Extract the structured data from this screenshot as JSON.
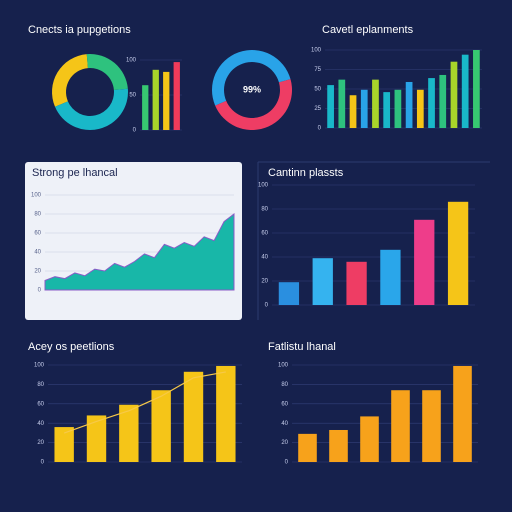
{
  "chart_data": [
    {
      "type": "pie",
      "title": "Cnects ia pupgetions",
      "values": [
        30,
        25,
        45
      ],
      "colors": [
        "#f5c518",
        "#2ec27e",
        "#19b8c9"
      ]
    },
    {
      "type": "bar",
      "values": [
        64,
        86,
        83,
        97
      ],
      "colors": [
        "#37c871",
        "#a8d42a",
        "#f5c518",
        "#ef3b5a"
      ],
      "ylim": [
        0,
        100
      ],
      "yticks": [
        0,
        50,
        100
      ]
    },
    {
      "type": "pie",
      "center_label": "99%",
      "values": [
        52,
        48
      ],
      "colors": [
        "#29a3e8",
        "#ee3d64"
      ]
    },
    {
      "type": "bar",
      "title": "Cavetl eplanments",
      "values": [
        55,
        62,
        42,
        49,
        62,
        46,
        49,
        59,
        49,
        64,
        68,
        85,
        94,
        100
      ],
      "colors": [
        "#19b8c9",
        "#2ec27e",
        "#f5c518",
        "#29a3e8",
        "#a8d42a",
        "#19b8c9",
        "#2ec27e",
        "#29a3e8",
        "#f5c518",
        "#19b8c9",
        "#2ec27e",
        "#a8d42a",
        "#19b8c9",
        "#37c871"
      ],
      "ylim": [
        0,
        100
      ],
      "yticks": [
        0,
        25,
        50,
        75,
        100
      ]
    },
    {
      "type": "area",
      "title": "Strong pe lhancal",
      "values": [
        10,
        14,
        12,
        18,
        15,
        22,
        20,
        28,
        24,
        30,
        38,
        34,
        48,
        44,
        50,
        46,
        56,
        52,
        72,
        80
      ],
      "color": "#18b7a8",
      "ylim": [
        0,
        100
      ],
      "yticks": [
        0,
        20,
        40,
        60,
        80,
        100
      ]
    },
    {
      "type": "bar",
      "title": "Cantinn plassts",
      "values": [
        19,
        39,
        36,
        46,
        71,
        86
      ],
      "colors": [
        "#2a8fe0",
        "#35b3ef",
        "#ee3d64",
        "#2aa6ea",
        "#ee3d8a",
        "#f5c518"
      ],
      "ylim": [
        0,
        100
      ],
      "yticks": [
        0,
        20,
        40,
        60,
        80,
        100
      ]
    },
    {
      "type": "bar",
      "title": "Acey os peetlions",
      "values": [
        36,
        48,
        59,
        74,
        93,
        99
      ],
      "colors": [
        "#f5c518",
        "#f5c518",
        "#f5c518",
        "#f5c518",
        "#f5c518",
        "#f5c518"
      ],
      "ylim": [
        0,
        100
      ],
      "yticks": [
        0,
        20,
        40,
        60,
        80,
        100
      ]
    },
    {
      "type": "bar",
      "title": "Fatlistu lhanal",
      "values": [
        29,
        33,
        47,
        74,
        74,
        99
      ],
      "colors": [
        "#f7a21b",
        "#f7a21b",
        "#f7a21b",
        "#f7a21b",
        "#f7a21b",
        "#f7a21b"
      ],
      "ylim": [
        0,
        100
      ],
      "yticks": [
        0,
        20,
        40,
        60,
        80,
        100
      ]
    }
  ]
}
